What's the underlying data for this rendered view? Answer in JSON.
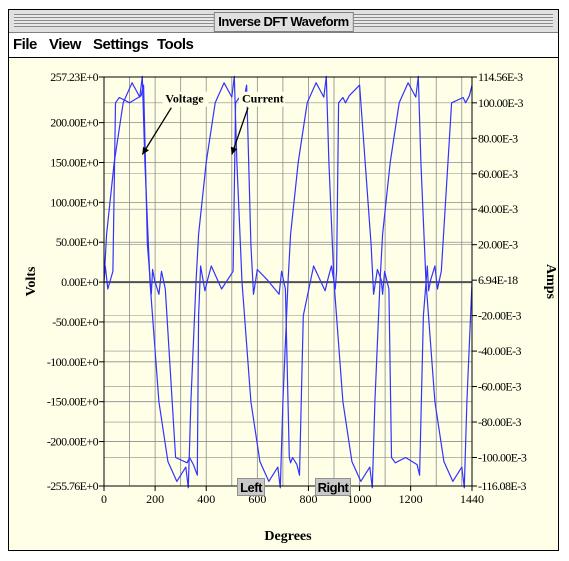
{
  "window": {
    "title": "Inverse DFT Waveform"
  },
  "menu": {
    "items": [
      "File",
      "View",
      "Settings",
      "Tools"
    ]
  },
  "cursors": {
    "left_label": "Left",
    "right_label": "Right"
  },
  "colors": {
    "trace": "#3333ff",
    "grid": "#8c8c8c",
    "background": "#ffffe7",
    "axis_zero": "#505050"
  },
  "chart_data": {
    "type": "line",
    "title": "",
    "xlabel": "Degrees",
    "ylabel": "Volts",
    "y2label": "Amps",
    "xlim": [
      0,
      1440
    ],
    "ylim": [
      -255.76,
      257.23
    ],
    "y2lim": [
      -0.116079,
      0.11456
    ],
    "x_ticks": [
      0,
      200,
      400,
      600,
      800,
      1000,
      1200,
      1440
    ],
    "y_ticks": [
      {
        "value": 257.23,
        "label": "257.23E+0"
      },
      {
        "value": 200,
        "label": "200.00E+0"
      },
      {
        "value": 150,
        "label": "150.00E+0"
      },
      {
        "value": 100,
        "label": "100.00E+0"
      },
      {
        "value": 50,
        "label": "50.00E+0"
      },
      {
        "value": 0,
        "label": "0.00E+0"
      },
      {
        "value": -50,
        "label": "-50.00E+0"
      },
      {
        "value": -100,
        "label": "-100.00E+0"
      },
      {
        "value": -150,
        "label": "-150.00E+0"
      },
      {
        "value": -200,
        "label": "-200.00E+0"
      },
      {
        "value": -255.76,
        "label": "-255.76E+0"
      }
    ],
    "y2_ticks": [
      {
        "value": 0.11456,
        "label": "114.56E-3"
      },
      {
        "value": 0.1,
        "label": "100.00E-3"
      },
      {
        "value": 0.08,
        "label": "80.00E-3"
      },
      {
        "value": 0.06,
        "label": "60.00E-3"
      },
      {
        "value": 0.04,
        "label": "40.00E-3"
      },
      {
        "value": 0.02,
        "label": "20.00E-3"
      },
      {
        "value": 0,
        "label": "6.94E-18"
      },
      {
        "value": -0.02,
        "label": "-20.00E-3"
      },
      {
        "value": -0.04,
        "label": "-40.00E-3"
      },
      {
        "value": -0.06,
        "label": "-60.00E-3"
      },
      {
        "value": -0.08,
        "label": "-80.00E-3"
      },
      {
        "value": -0.1,
        "label": "-100.00E-3"
      },
      {
        "value": -0.116079,
        "label": "-116.08E-3"
      }
    ],
    "grid": true,
    "annotations": [
      {
        "text": "Voltage",
        "x": 240,
        "y": 225,
        "arrow_to": {
          "x": 150,
          "y": 160
        }
      },
      {
        "text": "Current",
        "x": 540,
        "y": 225,
        "arrow_to": {
          "x": 500,
          "y": 160
        }
      }
    ],
    "series": [
      {
        "name": "Voltage",
        "axis": "left",
        "x": [
          0,
          10,
          40,
          75,
          110,
          140,
          150,
          160,
          180,
          215,
          250,
          285,
          320,
          330,
          340,
          360,
          370,
          400,
          435,
          470,
          500,
          510,
          520,
          540,
          575,
          610,
          645,
          680,
          690,
          700,
          720,
          730,
          760,
          795,
          830,
          860,
          870,
          880,
          900,
          935,
          970,
          1005,
          1040,
          1050,
          1060,
          1080,
          1090,
          1120,
          1155,
          1190,
          1220,
          1230,
          1240,
          1260,
          1295,
          1330,
          1365,
          1400,
          1410,
          1420,
          1440
        ],
        "y": [
          0,
          60,
          150,
          225,
          250,
          232,
          258,
          150,
          0,
          -150,
          -225,
          -250,
          -232,
          -258,
          -150,
          0,
          60,
          150,
          225,
          250,
          232,
          258,
          150,
          0,
          -150,
          -225,
          -250,
          -232,
          -258,
          -150,
          0,
          60,
          150,
          225,
          250,
          232,
          258,
          150,
          0,
          -150,
          -225,
          -250,
          -232,
          -258,
          -150,
          0,
          60,
          150,
          225,
          250,
          232,
          258,
          150,
          0,
          -150,
          -225,
          -250,
          -232,
          -258,
          -150,
          0
        ]
      },
      {
        "name": "Current",
        "axis": "right",
        "x": [
          0,
          5,
          15,
          35,
          45,
          60,
          100,
          145,
          155,
          170,
          185,
          190,
          198,
          215,
          225,
          240,
          280,
          325,
          335,
          350,
          365,
          370,
          378,
          395,
          405,
          420,
          460,
          505,
          515,
          530,
          545,
          550,
          558,
          575,
          585,
          600,
          640,
          685,
          695,
          710,
          725,
          730,
          738,
          755,
          765,
          780,
          820,
          865,
          875,
          890,
          905,
          910,
          918,
          935,
          945,
          960,
          1000,
          1045,
          1055,
          1070,
          1085,
          1090,
          1098,
          1115,
          1125,
          1140,
          1180,
          1225,
          1235,
          1250,
          1265,
          1270,
          1278,
          1295,
          1305,
          1320,
          1360,
          1405,
          1415,
          1430,
          1440
        ],
        "y": [
          0,
          0.008,
          -0.005,
          0.005,
          0.1,
          0.103,
          0.1,
          0.104,
          0.11,
          0.02,
          -0.008,
          0.006,
          0,
          -0.008,
          0.005,
          -0.005,
          -0.1,
          -0.103,
          -0.1,
          -0.104,
          -0.11,
          -0.02,
          0.008,
          -0.006,
          0,
          0.008,
          -0.005,
          0.005,
          0.1,
          0.103,
          0.1,
          0.104,
          0.11,
          0.02,
          -0.008,
          0.006,
          0,
          -0.008,
          0.005,
          -0.005,
          -0.1,
          -0.103,
          -0.1,
          -0.104,
          -0.11,
          -0.02,
          0.008,
          -0.006,
          0,
          0.008,
          -0.005,
          0.005,
          0.1,
          0.103,
          0.1,
          0.104,
          0.11,
          0.02,
          -0.008,
          0.006,
          0,
          -0.008,
          0.005,
          -0.005,
          -0.1,
          -0.103,
          -0.1,
          -0.104,
          -0.11,
          -0.02,
          0.008,
          -0.006,
          0,
          0.008,
          -0.005,
          0.005,
          0.1,
          0.103,
          0.1,
          0.104,
          0.11
        ]
      }
    ]
  }
}
